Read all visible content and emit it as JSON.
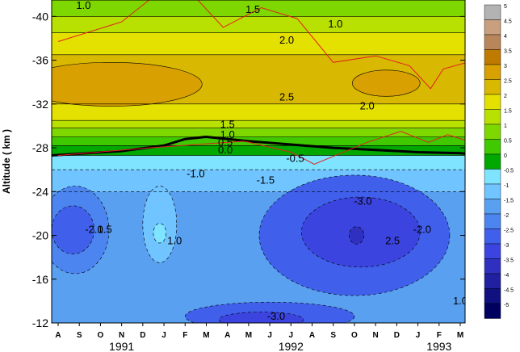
{
  "chart_data": {
    "type": "heatmap",
    "ylabel": "Altitude  ( km )",
    "xlabel": "",
    "title": "",
    "x_months": [
      "A",
      "S",
      "O",
      "N",
      "D",
      "J",
      "F",
      "M",
      "A",
      "M",
      "J",
      "J",
      "A",
      "S",
      "O",
      "N",
      "D",
      "J",
      "F",
      "M"
    ],
    "x_years": [
      {
        "label": "1991",
        "month_index": 3
      },
      {
        "label": "1992",
        "month_index": 11
      },
      {
        "label": "1993",
        "month_index": 18
      }
    ],
    "y_ticks": [
      -40,
      -36,
      -32,
      -28,
      -24,
      -20,
      -16,
      -12
    ],
    "ylim": [
      -12,
      -41.5
    ],
    "colorbar": {
      "levels": [
        5,
        4.5,
        4,
        3.5,
        3,
        2.5,
        2,
        1.5,
        1,
        0.5,
        0,
        -0.5,
        -1,
        -1.5,
        -2,
        -2.5,
        -3,
        -3.5,
        -4,
        -4.5,
        -5
      ],
      "colors": [
        "#b3b3b3",
        "#c8a07f",
        "#b8865a",
        "#bf7a00",
        "#d8a000",
        "#d8b800",
        "#e4e000",
        "#b8e000",
        "#7ed800",
        "#40c800",
        "#00a800",
        "#7fe4ff",
        "#70c4ff",
        "#5aa0f0",
        "#4c84f0",
        "#4060ec",
        "#3c44e0",
        "#3030c0",
        "#2020a0",
        "#101080",
        "#000060"
      ]
    },
    "bands": [
      {
        "value": 1.0,
        "color": "#7ed800",
        "y_top": -41.5,
        "y_bottom": -40.0
      },
      {
        "value": 1.5,
        "color": "#b8e000",
        "y_top": -40.0,
        "y_bottom": -38.5
      },
      {
        "value": 2.0,
        "color": "#e4e000",
        "y_top": -38.5,
        "y_bottom": -36.5
      },
      {
        "value": 2.5,
        "color": "#d8b800",
        "y_top": -36.5,
        "y_bottom": -32.0
      },
      {
        "value": 2.0,
        "color": "#e4e000",
        "y_top": -32.0,
        "y_bottom": -30.5
      },
      {
        "value": 1.5,
        "color": "#b8e000",
        "y_top": -30.5,
        "y_bottom": -29.8
      },
      {
        "value": 1.0,
        "color": "#7ed800",
        "y_top": -29.8,
        "y_bottom": -29.0
      },
      {
        "value": 0.5,
        "color": "#40c800",
        "y_top": -29.0,
        "y_bottom": -28.2
      },
      {
        "value": 0.0,
        "color": "#00a800",
        "y_top": -28.2,
        "y_bottom": -27.3
      },
      {
        "value": -0.5,
        "color": "#7fe4ff",
        "y_top": -27.3,
        "y_bottom": -26.0
      },
      {
        "value": -1.0,
        "color": "#70c4ff",
        "y_top": -26.0,
        "y_bottom": -24.0
      },
      {
        "value": -1.5,
        "color": "#5aa0f0",
        "y_top": -24.0,
        "y_bottom": -12.0
      }
    ],
    "blobs": [
      {
        "value": -2.5,
        "color": "#4060ec",
        "x": 14.0,
        "y": -20.0,
        "rx": 4.5,
        "ry": 5.5
      },
      {
        "value": -3.0,
        "color": "#3c44e0",
        "x": 14.3,
        "y": -20.3,
        "rx": 2.8,
        "ry": 3.2
      },
      {
        "value": -3.5,
        "color": "#3030c0",
        "x": 14.1,
        "y": -20.0,
        "rx": 0.35,
        "ry": 0.8
      },
      {
        "value": -2.0,
        "color": "#4c84f0",
        "x": 0.8,
        "y": -20.5,
        "rx": 1.6,
        "ry": 4.0
      },
      {
        "value": -2.5,
        "color": "#4060ec",
        "x": 0.7,
        "y": -20.5,
        "rx": 1.0,
        "ry": 2.2
      },
      {
        "value": -2.5,
        "color": "#4060ec",
        "x": 10.0,
        "y": -12.6,
        "rx": 4.0,
        "ry": 1.3
      },
      {
        "value": -3.0,
        "color": "#3c44e0",
        "x": 9.6,
        "y": -12.3,
        "rx": 2.0,
        "ry": 0.7
      },
      {
        "value": -1.0,
        "color": "#70c4ff",
        "x": 4.8,
        "y": -21.0,
        "rx": 0.8,
        "ry": 3.5
      },
      {
        "value": -0.5,
        "color": "#7fe4ff",
        "x": 4.8,
        "y": -20.2,
        "rx": 0.3,
        "ry": 0.9
      },
      {
        "value": 3.0,
        "color": "#d8a000",
        "x": 2.5,
        "y": -33.8,
        "rx": 4.3,
        "ry": 2.0
      },
      {
        "value": 3.0,
        "color": "#d8a000",
        "x": 15.5,
        "y": -33.9,
        "rx": 1.6,
        "ry": 1.2
      }
    ],
    "contour_labels": [
      {
        "text": "1.0",
        "x": 1.2,
        "y": -41.0
      },
      {
        "text": "1.5",
        "x": 9.2,
        "y": -40.6
      },
      {
        "text": "1.0",
        "x": 13.1,
        "y": -39.3
      },
      {
        "text": "2.0",
        "x": 10.8,
        "y": -37.8
      },
      {
        "text": "2.5",
        "x": 10.8,
        "y": -32.6
      },
      {
        "text": "2.0",
        "x": 14.6,
        "y": -31.8
      },
      {
        "text": "1.5",
        "x": 8.0,
        "y": -30.1
      },
      {
        "text": "1.0",
        "x": 8.0,
        "y": -29.2
      },
      {
        "text": "0.5",
        "x": 7.9,
        "y": -28.5
      },
      {
        "text": "0.0",
        "x": 7.9,
        "y": -27.8
      },
      {
        "text": "-0.5",
        "x": 11.2,
        "y": -27.0
      },
      {
        "text": "-1.0",
        "x": 6.5,
        "y": -25.6
      },
      {
        "text": "-1.5",
        "x": 9.8,
        "y": -25.0
      },
      {
        "text": "-2.0",
        "x": 1.7,
        "y": -20.5
      },
      {
        "text": "1.5",
        "x": 2.2,
        "y": -20.5
      },
      {
        "text": "1.0",
        "x": 5.5,
        "y": -19.5
      },
      {
        "text": "-3.0",
        "x": 14.4,
        "y": -23.1
      },
      {
        "text": "2.5",
        "x": 15.8,
        "y": -19.5
      },
      {
        "text": "-2.0",
        "x": 17.2,
        "y": -20.5
      },
      {
        "text": "-3.0",
        "x": 10.3,
        "y": -12.6
      },
      {
        "text": "1.0",
        "x": 19.0,
        "y": -14.0
      }
    ],
    "zero_line": [
      [
        -0.3,
        -27.3
      ],
      [
        3,
        -27.7
      ],
      [
        5,
        -28.2
      ],
      [
        6,
        -28.8
      ],
      [
        7,
        -29.0
      ],
      [
        9,
        -28.6
      ],
      [
        11,
        -28.3
      ],
      [
        13,
        -28.0
      ],
      [
        15,
        -27.8
      ],
      [
        17,
        -27.6
      ],
      [
        19,
        -27.5
      ],
      [
        19.7,
        -27.4
      ]
    ],
    "red_lines": [
      [
        [
          0,
          -37.7
        ],
        [
          3,
          -39.5
        ],
        [
          4.3,
          -41.5
        ]
      ],
      [
        [
          6.6,
          -41.5
        ],
        [
          7.8,
          -39.0
        ],
        [
          9.6,
          -40.8
        ],
        [
          11.3,
          -39.8
        ],
        [
          13.0,
          -35.8
        ],
        [
          15.0,
          -36.4
        ],
        [
          16.6,
          -35.5
        ],
        [
          17.6,
          -33.4
        ],
        [
          18.2,
          -35.2
        ],
        [
          19.7,
          -36.0
        ]
      ],
      [
        [
          0,
          -27.3
        ],
        [
          4.3,
          -28.0
        ],
        [
          8.8,
          -28.6
        ],
        [
          11.0,
          -27.6
        ],
        [
          12.1,
          -26.5
        ],
        [
          14.6,
          -28.5
        ],
        [
          16.2,
          -29.5
        ],
        [
          17.5,
          -28.5
        ],
        [
          18.4,
          -29.2
        ],
        [
          19.7,
          -28.4
        ]
      ]
    ]
  }
}
